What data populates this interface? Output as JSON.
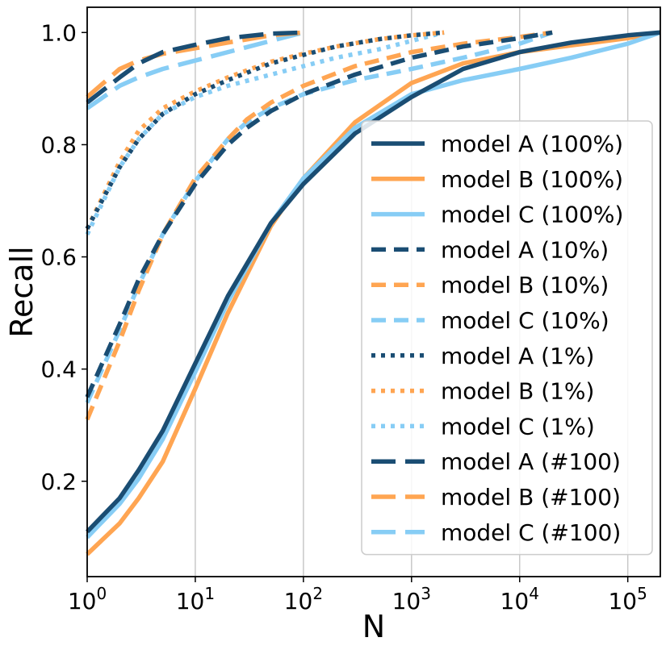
{
  "chart_data": {
    "type": "line",
    "title": "",
    "xlabel": "N",
    "ylabel": "Recall",
    "xscale": "log",
    "xlim": [
      1,
      200000
    ],
    "ylim": [
      0.03,
      1.045
    ],
    "grid": "vertical",
    "legend_position": "right",
    "x_ticks": [
      {
        "value": 1,
        "exp": "0"
      },
      {
        "value": 10,
        "exp": "1"
      },
      {
        "value": 100,
        "exp": "2"
      },
      {
        "value": 1000,
        "exp": "3"
      },
      {
        "value": 10000,
        "exp": "4"
      },
      {
        "value": 100000,
        "exp": "5"
      }
    ],
    "x_tick_base": "10",
    "y_ticks": [
      "0.2",
      "0.4",
      "0.6",
      "0.8",
      "1.0"
    ],
    "colors": {
      "model A": "#1a4d73",
      "model B": "#ffa552",
      "model C": "#87cdf5"
    },
    "series": [
      {
        "name": "model A (100%)",
        "model": "model A",
        "style": "solid",
        "x": [
          1,
          2,
          3,
          5,
          10,
          20,
          50,
          100,
          300,
          1000,
          3000,
          10000,
          30000,
          100000,
          200000
        ],
        "y": [
          0.11,
          0.17,
          0.22,
          0.29,
          0.41,
          0.53,
          0.66,
          0.73,
          0.82,
          0.885,
          0.935,
          0.965,
          0.982,
          0.995,
          1.0
        ]
      },
      {
        "name": "model B (100%)",
        "model": "model B",
        "style": "solid",
        "x": [
          1,
          2,
          3,
          5,
          10,
          20,
          50,
          100,
          300,
          1000,
          3000,
          10000,
          30000,
          100000,
          200000
        ],
        "y": [
          0.07,
          0.125,
          0.17,
          0.235,
          0.365,
          0.5,
          0.655,
          0.74,
          0.84,
          0.91,
          0.945,
          0.965,
          0.977,
          0.99,
          1.0
        ]
      },
      {
        "name": "model C (100%)",
        "model": "model C",
        "style": "solid",
        "x": [
          1,
          2,
          3,
          5,
          10,
          20,
          50,
          100,
          300,
          1000,
          3000,
          10000,
          30000,
          100000,
          200000
        ],
        "y": [
          0.1,
          0.16,
          0.205,
          0.275,
          0.395,
          0.52,
          0.66,
          0.74,
          0.83,
          0.89,
          0.915,
          0.935,
          0.955,
          0.98,
          1.0
        ]
      },
      {
        "name": "model A (10%)",
        "model": "model A",
        "style": "dashed",
        "x": [
          1,
          2,
          3,
          5,
          10,
          20,
          30,
          50,
          100,
          300,
          1000,
          3000,
          10000,
          20000
        ],
        "y": [
          0.35,
          0.48,
          0.56,
          0.64,
          0.73,
          0.8,
          0.83,
          0.86,
          0.89,
          0.925,
          0.955,
          0.975,
          0.99,
          1.0
        ]
      },
      {
        "name": "model B (10%)",
        "model": "model B",
        "style": "dashed",
        "x": [
          1,
          2,
          3,
          5,
          10,
          20,
          30,
          50,
          100,
          300,
          1000,
          3000,
          10000,
          20000
        ],
        "y": [
          0.31,
          0.45,
          0.54,
          0.64,
          0.74,
          0.81,
          0.845,
          0.875,
          0.905,
          0.94,
          0.965,
          0.98,
          0.992,
          1.0
        ]
      },
      {
        "name": "model C (10%)",
        "model": "model C",
        "style": "dashed",
        "x": [
          1,
          2,
          3,
          5,
          10,
          20,
          30,
          50,
          100,
          300,
          1000,
          3000,
          10000,
          20000
        ],
        "y": [
          0.34,
          0.47,
          0.55,
          0.64,
          0.735,
          0.81,
          0.84,
          0.865,
          0.89,
          0.915,
          0.935,
          0.955,
          0.98,
          1.0
        ]
      },
      {
        "name": "model A (1%)",
        "model": "model A",
        "style": "dotted",
        "x": [
          1,
          2,
          3,
          5,
          10,
          20,
          50,
          100,
          200,
          500,
          1000,
          2000
        ],
        "y": [
          0.65,
          0.76,
          0.81,
          0.855,
          0.89,
          0.915,
          0.945,
          0.96,
          0.975,
          0.988,
          0.995,
          1.0
        ]
      },
      {
        "name": "model B (1%)",
        "model": "model B",
        "style": "dotted",
        "x": [
          1,
          2,
          3,
          5,
          10,
          20,
          50,
          100,
          200,
          500,
          1000,
          2000
        ],
        "y": [
          0.65,
          0.77,
          0.825,
          0.865,
          0.895,
          0.92,
          0.948,
          0.962,
          0.975,
          0.988,
          0.995,
          1.0
        ]
      },
      {
        "name": "model C (1%)",
        "model": "model C",
        "style": "dotted",
        "x": [
          1,
          2,
          3,
          5,
          10,
          20,
          50,
          100,
          200,
          500,
          1000,
          2000
        ],
        "y": [
          0.64,
          0.76,
          0.81,
          0.855,
          0.885,
          0.905,
          0.925,
          0.94,
          0.955,
          0.97,
          0.985,
          1.0
        ]
      },
      {
        "name": "model A (#100)",
        "model": "model A",
        "style": "longdash",
        "x": [
          1,
          2,
          3,
          5,
          10,
          20,
          50,
          100
        ],
        "y": [
          0.875,
          0.92,
          0.945,
          0.965,
          0.978,
          0.99,
          0.998,
          1.0
        ]
      },
      {
        "name": "model B (#100)",
        "model": "model B",
        "style": "longdash",
        "x": [
          1,
          2,
          3,
          5,
          10,
          20,
          50,
          100
        ],
        "y": [
          0.885,
          0.935,
          0.95,
          0.962,
          0.972,
          0.982,
          0.995,
          1.0
        ]
      },
      {
        "name": "model C (#100)",
        "model": "model C",
        "style": "longdash",
        "x": [
          1,
          2,
          3,
          5,
          10,
          20,
          50,
          100
        ],
        "y": [
          0.865,
          0.905,
          0.92,
          0.935,
          0.95,
          0.965,
          0.985,
          1.0
        ]
      }
    ]
  }
}
